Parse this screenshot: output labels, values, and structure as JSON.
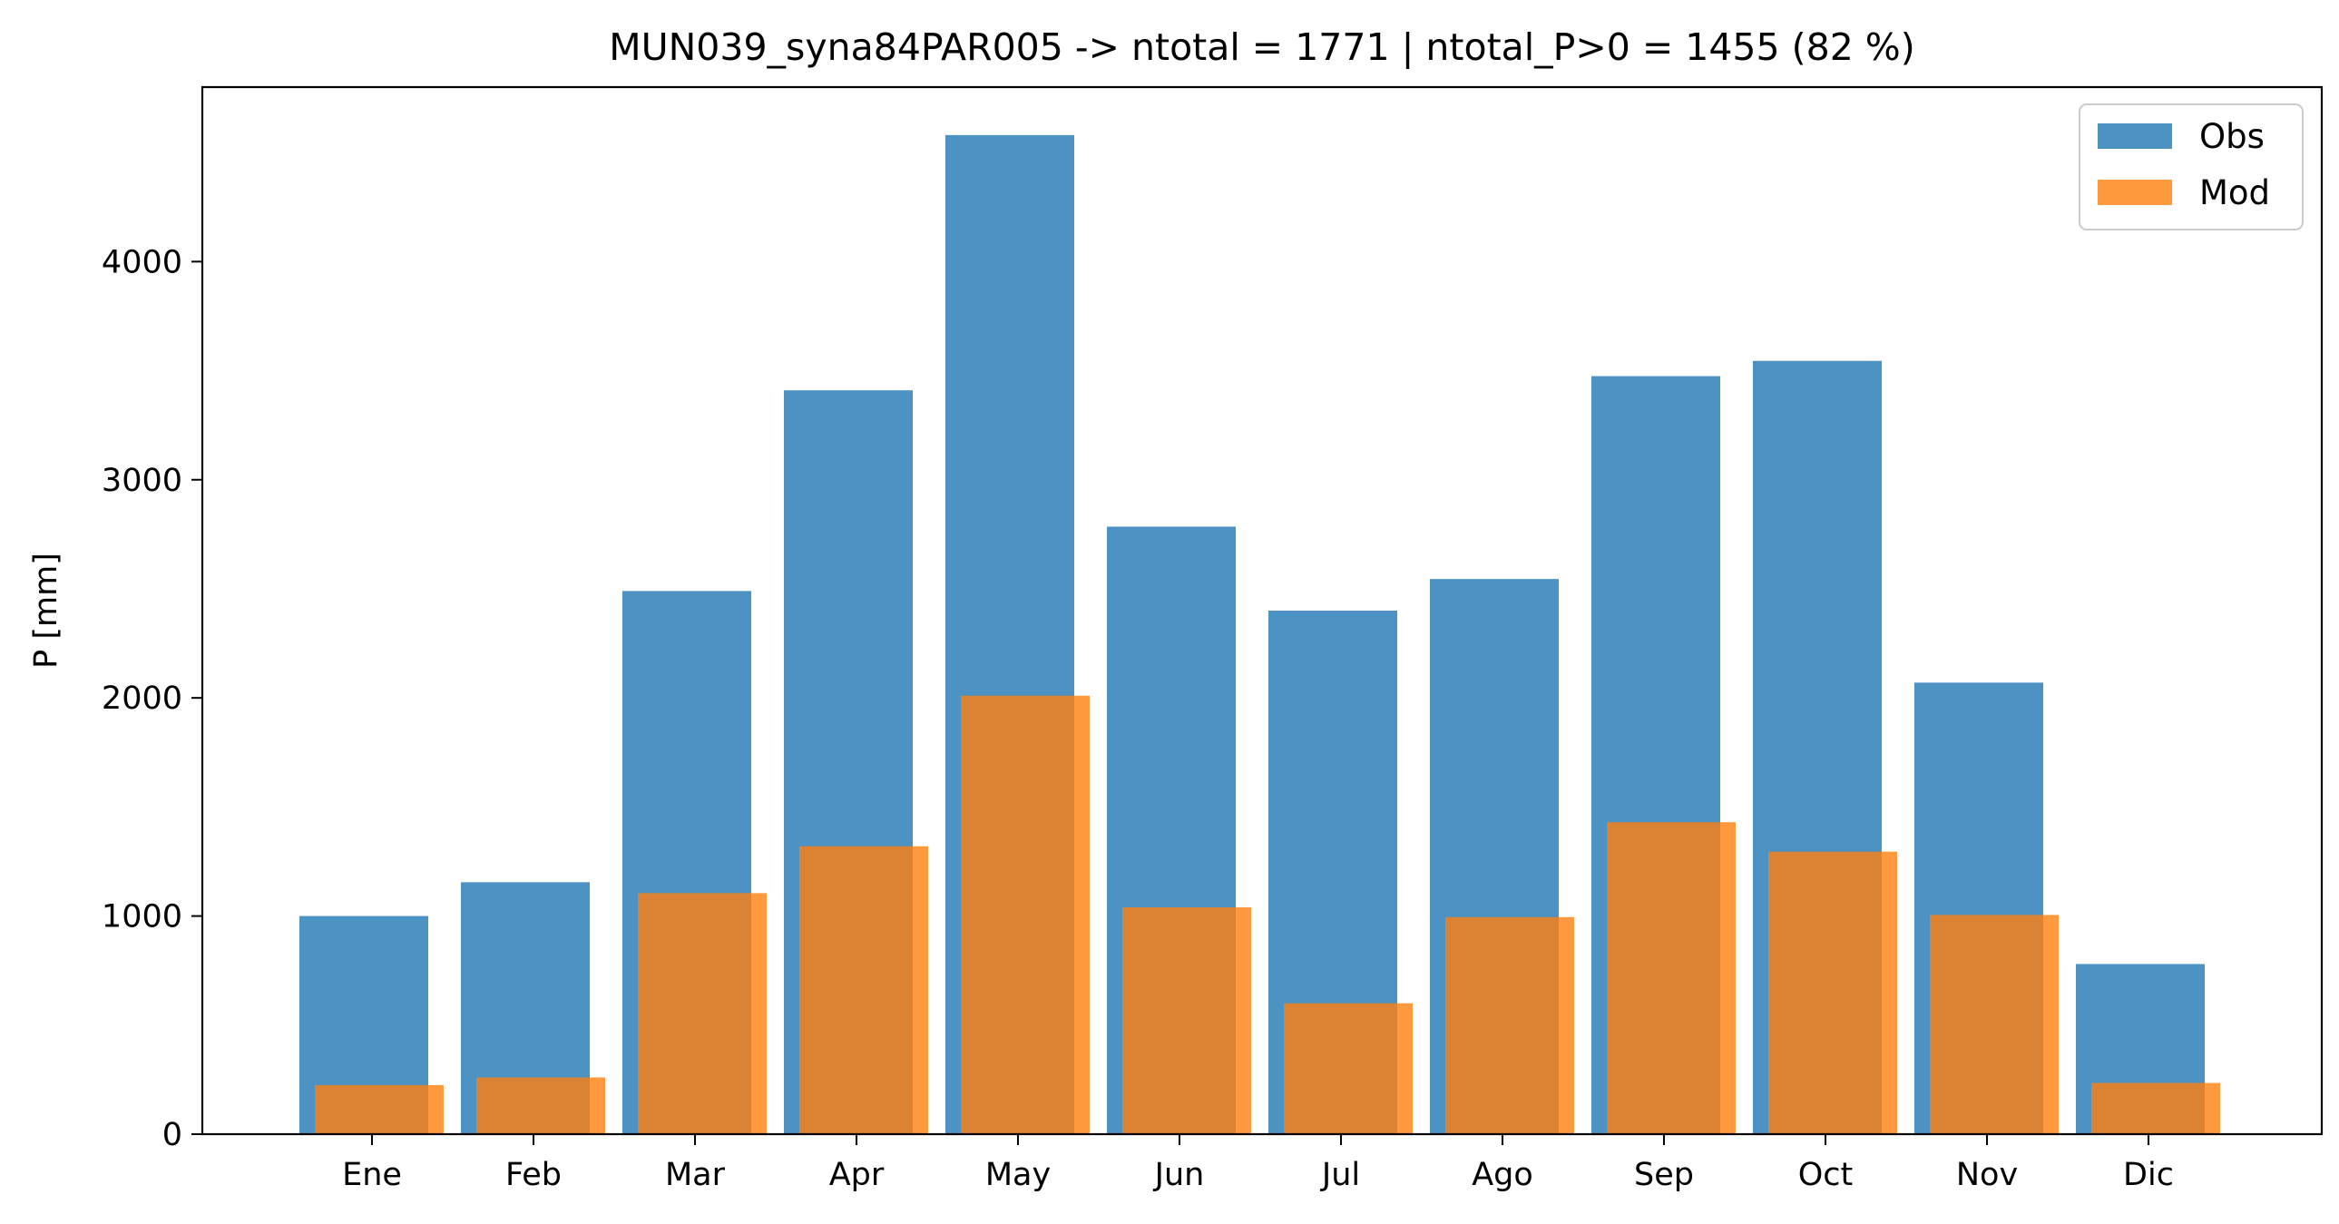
{
  "chart_data": {
    "type": "bar",
    "title": "MUN039_syna84PAR005 -> ntotal = 1771 | ntotal_P>0 = 1455 (82 %)",
    "xlabel": "",
    "ylabel": "P [mm]",
    "ylim": [
      0,
      4800
    ],
    "yticks": [
      0,
      1000,
      2000,
      3000,
      4000
    ],
    "grid": false,
    "legend_position": "top-right",
    "categories": [
      "Ene",
      "Feb",
      "Mar",
      "Apr",
      "May",
      "Jun",
      "Jul",
      "Ago",
      "Sep",
      "Oct",
      "Nov",
      "Dic"
    ],
    "series": [
      {
        "name": "Obs",
        "color": "#1f77b4",
        "values": [
          1000,
          1155,
          2490,
          3410,
          4580,
          2785,
          2400,
          2545,
          3475,
          3545,
          2070,
          780
        ]
      },
      {
        "name": "Mod",
        "color": "#ff7f0e",
        "values": [
          225,
          260,
          1105,
          1320,
          2010,
          1040,
          600,
          995,
          1430,
          1295,
          1005,
          235
        ]
      }
    ]
  }
}
